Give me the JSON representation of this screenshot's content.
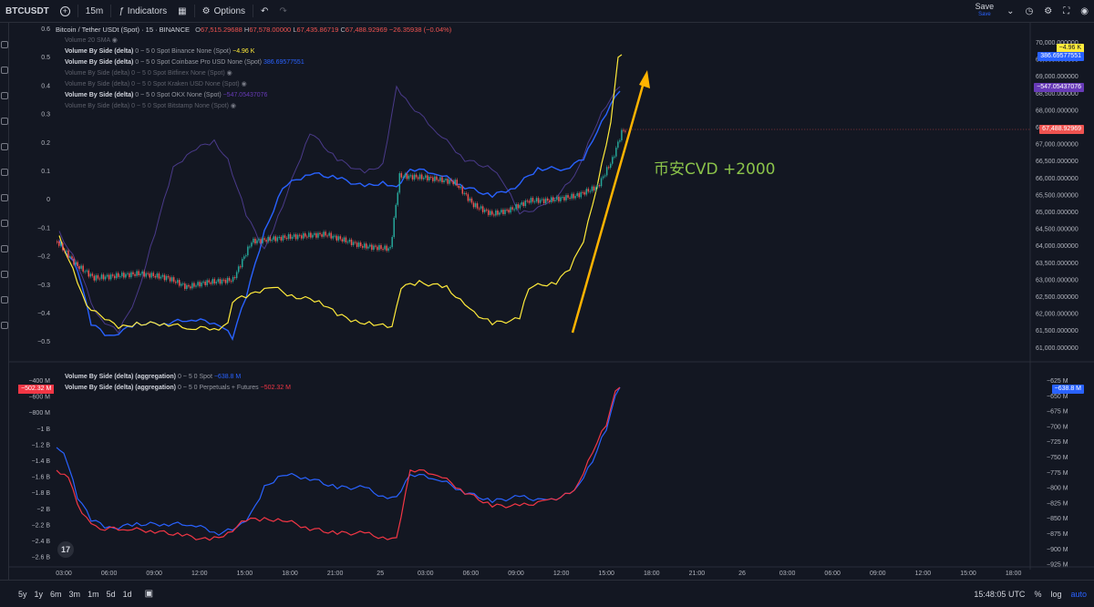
{
  "toolbar": {
    "symbol": "BTCUSDT",
    "interval": "15m",
    "indicators_label": "Indicators",
    "options_label": "Options",
    "save_label": "Save",
    "save_sub": "Save"
  },
  "header": {
    "title": "Bitcoin / Tether USDt (Spot) · 15 · BINANCE",
    "ohlc": {
      "o_label": "O",
      "o": "67,515.29688",
      "h_label": "H",
      "h": "67,578.00000",
      "l_label": "L",
      "l": "67,435.86719",
      "c_label": "C",
      "c": "67,488.92969",
      "change": "−26.35938 (−0.04%)"
    }
  },
  "legend_top": [
    {
      "name": "Volume 20 SMA",
      "params": "",
      "value": "",
      "dim": true
    },
    {
      "name": "Volume By Side (delta)",
      "params": "0 ~ 5 0 Spot Binance None (Spot)",
      "value": "−4.96 K",
      "color": "#ffeb3b",
      "dim": false
    },
    {
      "name": "Volume By Side (delta)",
      "params": "0 ~ 5 0 Spot Coinbase Pro USD None (Spot)",
      "value": "386.69577551",
      "color": "#2962ff",
      "dim": false
    },
    {
      "name": "Volume By Side (delta)",
      "params": "0 ~ 5 0 Spot Bitfinex None (Spot)",
      "value": "",
      "dim": true
    },
    {
      "name": "Volume By Side (delta)",
      "params": "0 ~ 5 0 Spot Kraken USD None (Spot)",
      "value": "",
      "dim": true
    },
    {
      "name": "Volume By Side (delta)",
      "params": "0 ~ 5 0 Spot OKX None (Spot)",
      "value": "−547.05437076",
      "color": "#673ab7",
      "dim": false
    },
    {
      "name": "Volume By Side (delta)",
      "params": "0 ~ 5 0 Spot Bitstamp None (Spot)",
      "value": "",
      "dim": true
    }
  ],
  "legend_bottom": [
    {
      "name": "Volume By Side (delta) (aggregation)",
      "params": "0 ~ 5 0 Spot",
      "value": "−638.8 M",
      "color": "#2962ff"
    },
    {
      "name": "Volume By Side (delta) (aggregation)",
      "params": "0 ~ 5 0 Perpetuals + Futures",
      "value": "−502.32 M",
      "color": "#f23645"
    }
  ],
  "annotation": {
    "text": "币安CVD +2000",
    "color": "#8bc34a",
    "arrow_color": "#ffb300"
  },
  "price_tags": {
    "binance": "−4.96 K",
    "coinbase": "386.69577551",
    "okx": "−547.05437076",
    "last_price": "67,488.92969",
    "spot_agg": "−638.8 M",
    "perp_agg": "−502.32 M"
  },
  "axes": {
    "top_left_ticks": [
      "0.6",
      "0.5",
      "0.4",
      "0.3",
      "0.2",
      "0.1",
      "0",
      "−0.1",
      "−0.2",
      "−0.3",
      "−0.4",
      "−0.5"
    ],
    "top_right_ticks": [
      "70,000.000000",
      "69,500.000000",
      "69,000.000000",
      "68,500.000000",
      "68,000.000000",
      "67,500.000000",
      "67,000.000000",
      "66,500.000000",
      "66,000.000000",
      "65,500.000000",
      "65,000.000000",
      "64,500.000000",
      "64,000.000000",
      "63,500.000000",
      "63,000.000000",
      "62,500.000000",
      "62,000.000000",
      "61,500.000000",
      "61,000.000000"
    ],
    "bottom_left_ticks": [
      "−400 M",
      "−600 M",
      "−800 M",
      "−1 B",
      "−1.2 B",
      "−1.4 B",
      "−1.6 B",
      "−1.8 B",
      "−2 B",
      "−2.2 B",
      "−2.4 B",
      "−2.6 B"
    ],
    "bottom_right_ticks": [
      "−625 M",
      "−650 M",
      "−675 M",
      "−700 M",
      "−725 M",
      "−750 M",
      "−775 M",
      "−800 M",
      "−825 M",
      "−850 M",
      "−875 M",
      "−900 M",
      "−925 M"
    ],
    "time_ticks": [
      "03:00",
      "06:00",
      "09:00",
      "12:00",
      "15:00",
      "18:00",
      "21:00",
      "25",
      "03:00",
      "06:00",
      "09:00",
      "12:00",
      "15:00",
      "18:00",
      "21:00",
      "26",
      "03:00",
      "06:00",
      "09:00",
      "12:00",
      "15:00",
      "18:00"
    ]
  },
  "bottombar": {
    "timeframes": [
      "5y",
      "1y",
      "6m",
      "3m",
      "1m",
      "5d",
      "1d"
    ],
    "clock": "15:48:05 UTC",
    "percent": "%",
    "log": "log",
    "auto": "auto"
  },
  "colors": {
    "background": "#131722",
    "up": "#26a69a",
    "down": "#ef5350",
    "binance": "#ffeb3b",
    "coinbase": "#2962ff",
    "okx": "#4a3a8a",
    "spot": "#2962ff",
    "perp": "#f23645"
  }
}
